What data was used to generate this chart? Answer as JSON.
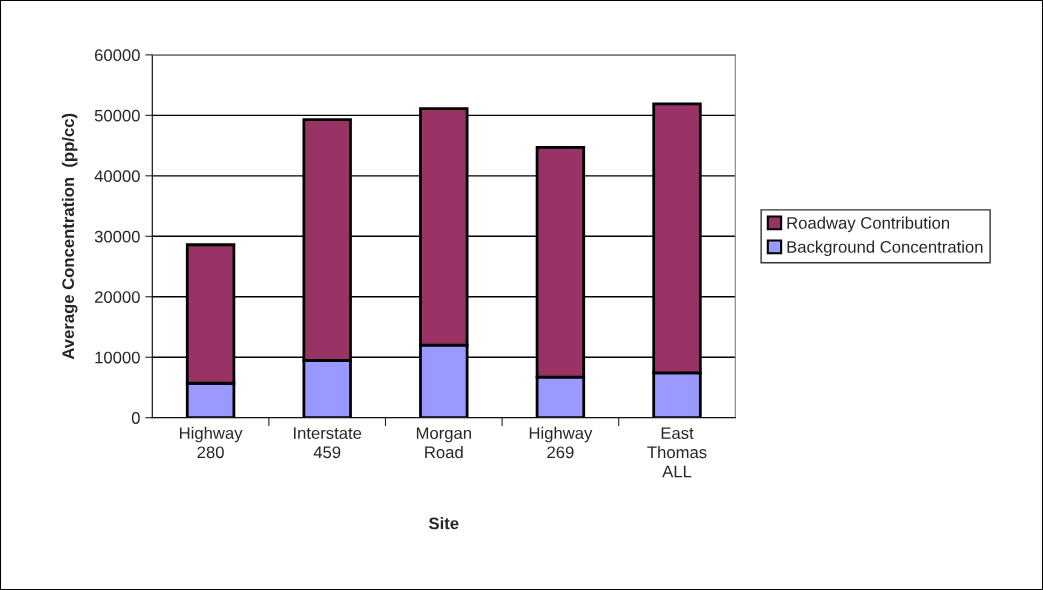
{
  "chart_data": {
    "type": "bar",
    "stacked": true,
    "xlabel": "Site",
    "ylabel": "Average Concentration  (pp/cc)",
    "categories": [
      "Highway\n280",
      "Interstate\n459",
      "Morgan\nRoad",
      "Highway\n269",
      "East\nThomas\nALL"
    ],
    "series": [
      {
        "name": "Background Concentration",
        "color": "#9999ff",
        "values": [
          5700,
          9500,
          12000,
          6700,
          7400
        ]
      },
      {
        "name": "Roadway Contribution",
        "color": "#993366",
        "values": [
          22900,
          39800,
          39100,
          38000,
          44500
        ]
      }
    ],
    "ylim": [
      0,
      60000
    ],
    "yticks": [
      0,
      10000,
      20000,
      30000,
      40000,
      50000,
      60000
    ],
    "grid": "y",
    "legend": "right"
  }
}
